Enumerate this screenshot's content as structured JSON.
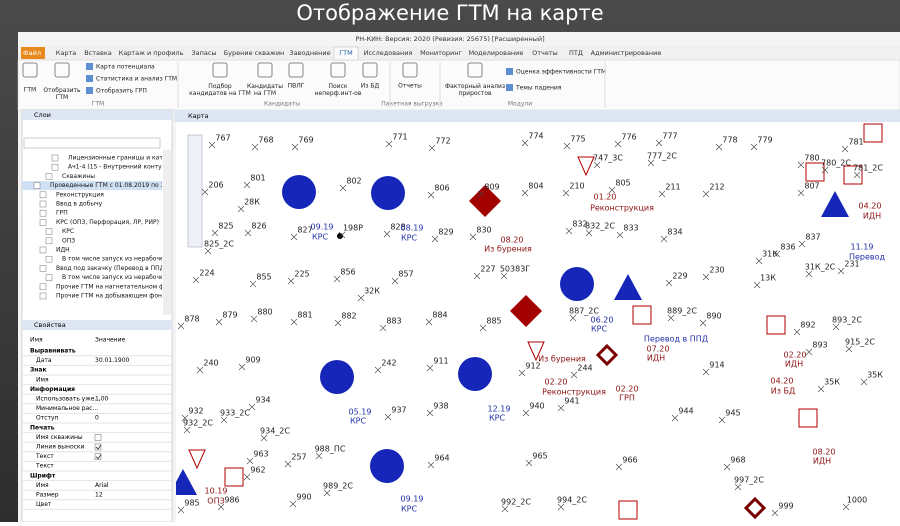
{
  "slide_title": "Отображение ГТМ на карте",
  "window_title": "РН-КИН: Версия: 2020 (Ревизия: 25675) [Расширенный]",
  "ribbon": {
    "tabs": [
      "Файл",
      "Карта",
      "Вставка",
      "Картаж и профиль",
      "Запасы",
      "Бурение скважин",
      "Заводнение",
      "ГТМ",
      "Исследования",
      "Мониторинг",
      "Моделирование",
      "Отчеты",
      "ПТД",
      "Администрирование"
    ],
    "active_tab": 7,
    "buttons": [
      "ГТМ",
      "Отобразить ГТМ",
      "Карта потенциала",
      "Статистика и анализ ГТМ",
      "Отобразить ГРП",
      "Подбор кандидатов на ГТМ",
      "Кандидаты на ГТМ",
      "ПВЛГ",
      "Поиск неперф.инт-ов",
      "Из БД",
      "Отчеты",
      "Факторный анализ приростов",
      "Оценка эффективности ГТМ",
      "Темы падения"
    ],
    "groups": [
      "ГТМ",
      "Кандидаты",
      "Пакетная выгрузка",
      "Модули"
    ]
  },
  "layers": {
    "title": "Слои",
    "items": [
      "Лицензионные границы и катег...",
      "Ач1-4 (15 - Внутренний контур н...",
      "Скважины",
      "Проведенные ГТМ с 01.08.2019 по 31.08...",
      "Реконструкция",
      "Ввод в добычу",
      "ГРП",
      "КРС (ОПЗ, Перфорация, ЛР, РИР)",
      "КРС",
      "ОПЗ",
      "ИДН",
      "В том числе запуск из нерабочего ф...",
      "Ввод под закачку (Перевод в ППД, и...",
      "В том числе запуск из нерабочего ф...",
      "Прочие ГТМ на нагнетательном фо...",
      "Прочие ГТМ на добывающем фонд..."
    ],
    "selected": 3
  },
  "properties": {
    "title": "Свойства",
    "columns": [
      "Имя",
      "Значение"
    ],
    "rows": [
      {
        "section": "Выравнивать"
      },
      {
        "name": "Дата",
        "value": "30.01.1900"
      },
      {
        "section": "Знак"
      },
      {
        "name": "Имя"
      },
      {
        "section": "Информация"
      },
      {
        "name": "Использовать уже...",
        "value": "1,00"
      },
      {
        "name": "Минимальное рас..."
      },
      {
        "name": "Отступ",
        "value": "0"
      },
      {
        "section": "Печать"
      },
      {
        "name": "Имя скважины",
        "checked": false
      },
      {
        "name": "Линия выноски",
        "checked": true
      },
      {
        "name": "Текст",
        "checked": true
      },
      {
        "name": "Текст"
      },
      {
        "section": "Шрифт"
      },
      {
        "name": "Имя",
        "value": "Arial"
      },
      {
        "name": "Размер",
        "value": "12"
      },
      {
        "name": "Цвет"
      }
    ]
  },
  "map": {
    "title": "Карта",
    "well_labels": [
      "767",
      "768",
      "769",
      "771",
      "772",
      "774",
      "775",
      "776",
      "777",
      "778",
      "779",
      "781",
      "777_2С",
      "747_3С",
      "206",
      "801",
      "802",
      "806",
      "809",
      "804",
      "210",
      "805",
      "211",
      "212",
      "807",
      "780",
      "780_2С",
      "781_2С",
      "28К",
      "825",
      "826",
      "827",
      "198Р",
      "828",
      "829",
      "830",
      "832",
      "832_2С",
      "833",
      "834",
      "836",
      "837",
      "31К",
      "825_2С",
      "224",
      "855",
      "225",
      "856",
      "857",
      "227",
      "50383Г",
      "229",
      "230",
      "13К",
      "31К_2С",
      "231",
      "32К",
      "878",
      "879",
      "880",
      "881",
      "882",
      "883",
      "884",
      "885",
      "887_2С",
      "889_2С",
      "890",
      "892",
      "893_2С",
      "893",
      "915_2С",
      "240",
      "909",
      "242",
      "911",
      "912",
      "244",
      "914",
      "35К",
      "35К",
      "932",
      "933_2С",
      "934",
      "937",
      "938",
      "940",
      "941",
      "944",
      "945",
      "932_2С",
      "934_2С",
      "963",
      "962",
      "257",
      "988_ПС",
      "964",
      "965",
      "966",
      "968",
      "997_2С",
      "989_2С",
      "990",
      "986",
      "985",
      "992_2С",
      "994_2С",
      "999",
      "1000"
    ],
    "krs_labels": [
      "09.19",
      "КРС",
      "08.19",
      "КРС",
      "11.19",
      "Перевод",
      "06.20",
      "КРС",
      "Перевод в ППД",
      "05.19",
      "КРС",
      "12.19",
      "КРС",
      "09.19",
      "КРС"
    ],
    "event_labels": [
      "08.20",
      "Из бурения",
      "01.20",
      "Реконструкция",
      "04.20",
      "ИДН",
      "07.20",
      "ИДН",
      "Из бурения",
      "02.20",
      "Реконструкция",
      "02.20",
      "ГРП",
      "02.20",
      "ИДН",
      "04.20",
      "Из БД",
      "08.20",
      "ИДН",
      "10.19",
      "ОПЗ"
    ],
    "krs_color": "#1f2fa8",
    "event_color": "#8b1010",
    "well_color": "#222222",
    "marker_color": "#b00000",
    "producer_color": "#1526b8"
  }
}
